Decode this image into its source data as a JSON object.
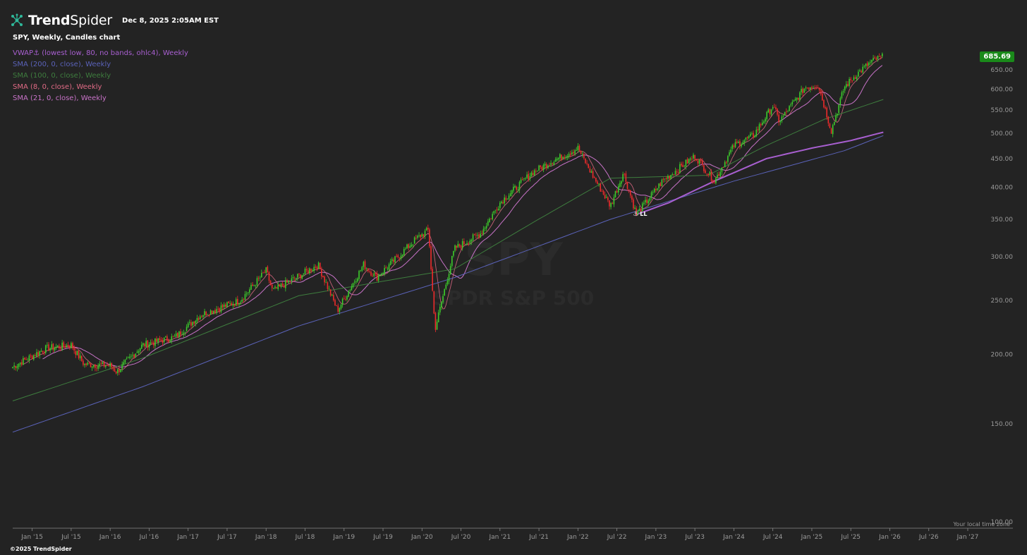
{
  "header": {
    "brand_bold": "Trend",
    "brand_light": "Spider",
    "datetime": "Dec 8, 2025 2:05AM EST",
    "symbol_line": "SPY, Weekly, Candles chart"
  },
  "watermark": {
    "ticker": "SPY",
    "name": "SPDR S&P 500"
  },
  "legend": [
    {
      "text": "VWAP⚓ (lowest low, 80, no bands, ohlc4), Weekly",
      "color": "#a85fd0"
    },
    {
      "text": "SMA (200, 0, close), Weekly",
      "color": "#5a62b8"
    },
    {
      "text": "SMA (100, 0, close), Weekly",
      "color": "#3e7d3e"
    },
    {
      "text": "SMA (8, 0, close), Weekly",
      "color": "#e06a85"
    },
    {
      "text": "SMA (21, 0, close), Weekly",
      "color": "#c873c8"
    }
  ],
  "last_price": "685.69",
  "timezone_note": "Your local time zone",
  "copyright": "©2025 TrendSpider",
  "anchor_marker_label": "LL",
  "colors": {
    "background": "#232323",
    "up_candle": "#3dcc2b",
    "down_candle": "#ee2b2b",
    "axis_text": "#9a9a9a",
    "price_tag": "#1a8a1a"
  },
  "chart_data": {
    "type": "candlestick",
    "symbol": "SPY",
    "interval": "Weekly",
    "y_axis": {
      "scale": "log",
      "range": [
        100,
        750
      ],
      "tick_labels": [
        "100.00",
        "150.00",
        "200.00",
        "250.00",
        "300.00",
        "350.00",
        "400.00",
        "450.00",
        "500.00",
        "550.00",
        "600.00",
        "650.00"
      ]
    },
    "x_axis": {
      "range": [
        "2014-10",
        "2027-01"
      ],
      "tick_labels": [
        "Jan '15",
        "Jul '15",
        "Jan '16",
        "Jul '16",
        "Jan '17",
        "Jul '17",
        "Jan '18",
        "Jul '18",
        "Jan '19",
        "Jul '19",
        "Jan '20",
        "Jul '20",
        "Jan '21",
        "Jul '21",
        "Jan '22",
        "Jul '22",
        "Jan '23",
        "Jul '23",
        "Jan '24",
        "Jul '24",
        "Jan '25",
        "Jul '25",
        "Jan '26",
        "Jul '26",
        "Jan '27"
      ]
    },
    "close_path": [
      [
        "2014-10",
        190
      ],
      [
        "2015-03",
        205
      ],
      [
        "2015-07",
        208
      ],
      [
        "2015-09",
        192
      ],
      [
        "2016-01",
        191
      ],
      [
        "2016-02",
        186
      ],
      [
        "2016-06",
        208
      ],
      [
        "2016-11",
        215
      ],
      [
        "2017-03",
        236
      ],
      [
        "2017-09",
        250
      ],
      [
        "2018-01",
        283
      ],
      [
        "2018-02",
        260
      ],
      [
        "2018-09",
        290
      ],
      [
        "2018-12",
        240
      ],
      [
        "2019-04",
        290
      ],
      [
        "2019-06",
        275
      ],
      [
        "2019-12",
        322
      ],
      [
        "2020-02",
        335
      ],
      [
        "2020-03",
        222
      ],
      [
        "2020-06",
        310
      ],
      [
        "2020-10",
        330
      ],
      [
        "2021-01",
        375
      ],
      [
        "2021-06",
        425
      ],
      [
        "2021-09",
        445
      ],
      [
        "2022-01",
        470
      ],
      [
        "2022-03",
        425
      ],
      [
        "2022-06",
        370
      ],
      [
        "2022-08",
        425
      ],
      [
        "2022-10",
        357
      ],
      [
        "2023-02",
        410
      ],
      [
        "2023-07",
        455
      ],
      [
        "2023-10",
        410
      ],
      [
        "2024-01",
        475
      ],
      [
        "2024-04",
        495
      ],
      [
        "2024-07",
        560
      ],
      [
        "2024-08",
        525
      ],
      [
        "2024-12",
        605
      ],
      [
        "2025-02",
        610
      ],
      [
        "2025-04",
        505
      ],
      [
        "2025-06",
        605
      ],
      [
        "2025-08",
        640
      ],
      [
        "2025-10",
        670
      ],
      [
        "2025-11",
        680
      ],
      [
        "2025-12",
        686
      ]
    ],
    "series": [
      {
        "name": "SMA (200, 0, close), Weekly",
        "color": "#5a62b8",
        "points": [
          [
            "2014-10",
            145
          ],
          [
            "2016-06",
            175
          ],
          [
            "2018-06",
            225
          ],
          [
            "2020-06",
            275
          ],
          [
            "2022-06",
            350
          ],
          [
            "2024-01",
            410
          ],
          [
            "2025-06",
            465
          ],
          [
            "2025-12",
            495
          ]
        ]
      },
      {
        "name": "SMA (100, 0, close), Weekly",
        "color": "#3e7d3e",
        "points": [
          [
            "2014-10",
            165
          ],
          [
            "2016-06",
            197
          ],
          [
            "2018-06",
            255
          ],
          [
            "2020-06",
            285
          ],
          [
            "2021-06",
            345
          ],
          [
            "2022-06",
            415
          ],
          [
            "2023-09",
            420
          ],
          [
            "2024-06",
            475
          ],
          [
            "2025-03",
            530
          ],
          [
            "2025-12",
            575
          ]
        ]
      },
      {
        "name": "VWAP⚓ (lowest low, 80, no bands, ohlc4), Weekly",
        "color": "#a85fd0",
        "points": [
          [
            "2022-10",
            357
          ],
          [
            "2023-03",
            375
          ],
          [
            "2023-10",
            410
          ],
          [
            "2024-06",
            450
          ],
          [
            "2025-01",
            470
          ],
          [
            "2025-07",
            485
          ],
          [
            "2025-12",
            502
          ]
        ]
      }
    ]
  }
}
